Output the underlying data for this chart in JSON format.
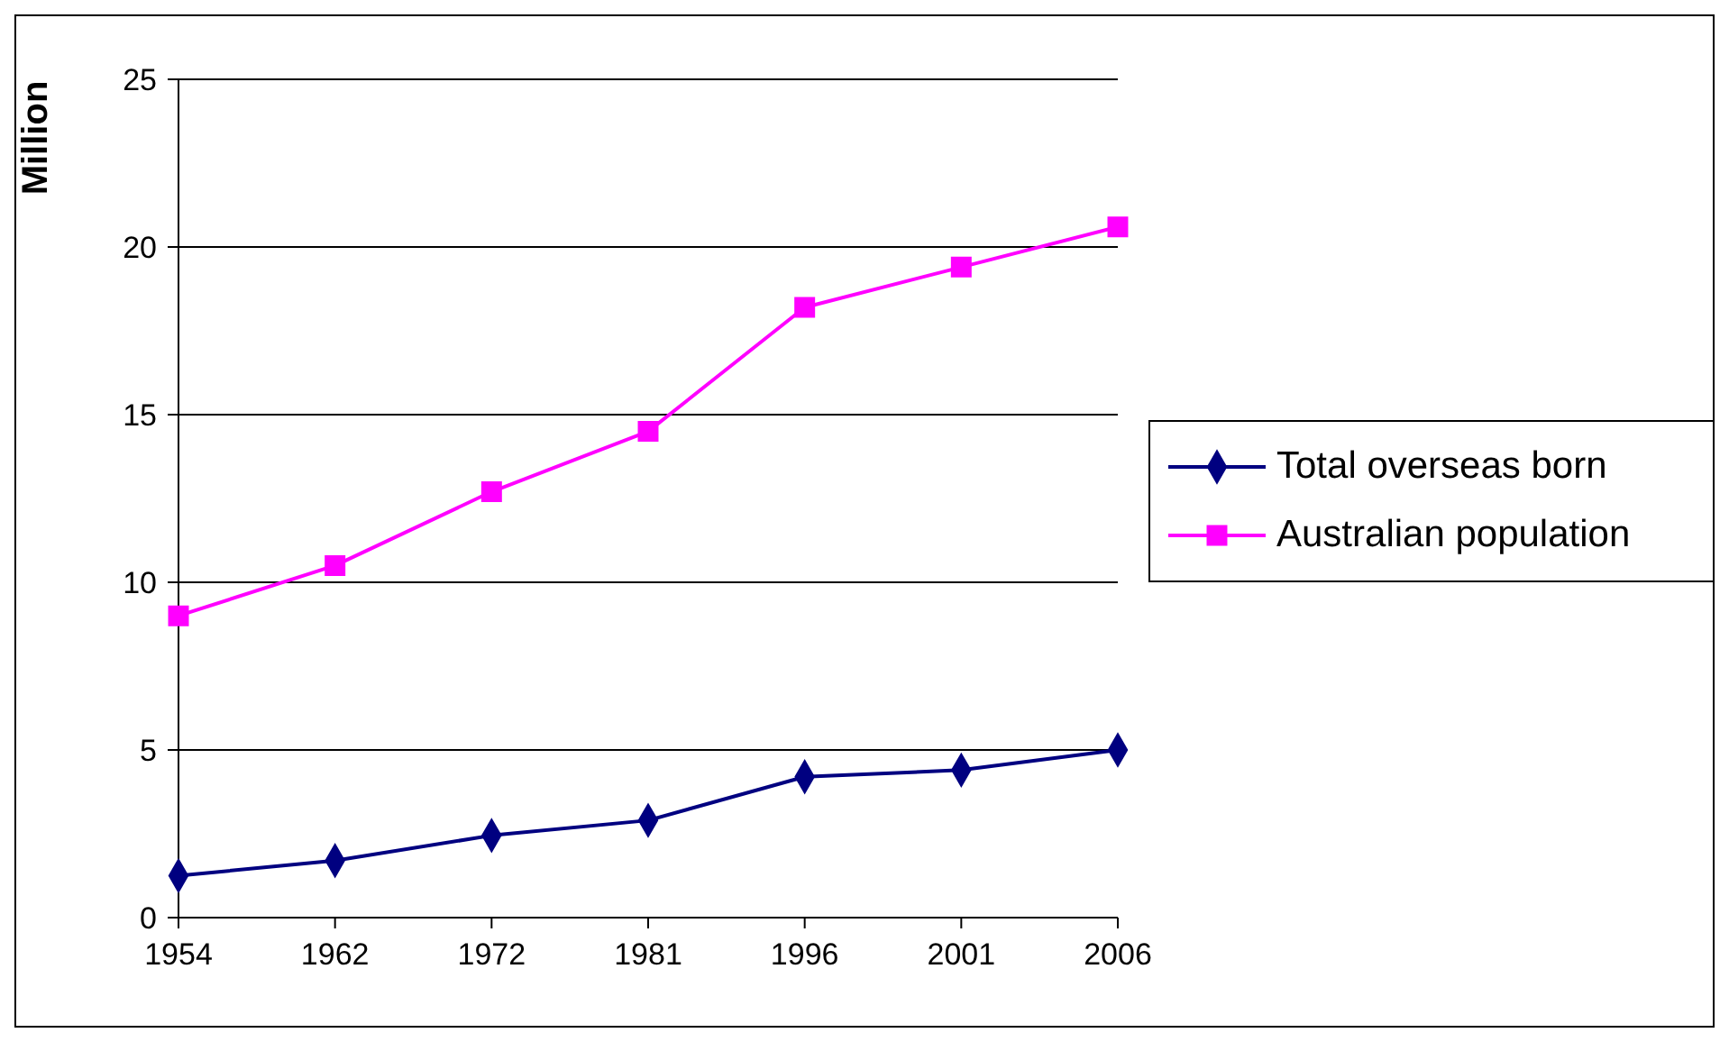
{
  "chart_data": {
    "type": "line",
    "ylabel": "Million",
    "categories": [
      "1954",
      "1962",
      "1972",
      "1981",
      "1996",
      "2001",
      "2006"
    ],
    "series": [
      {
        "name": "Total overseas born",
        "color": "#000080",
        "marker": "diamond",
        "values": [
          1.25,
          1.7,
          2.45,
          2.9,
          4.2,
          4.4,
          5.0
        ]
      },
      {
        "name": "Australian population",
        "color": "#ff00ff",
        "marker": "square",
        "values": [
          9.0,
          10.5,
          12.7,
          14.5,
          18.2,
          19.4,
          20.6
        ]
      }
    ],
    "ylim": [
      0,
      25
    ],
    "yticks": [
      0,
      5,
      10,
      15,
      20,
      25
    ],
    "grid": "y",
    "legend": "right"
  }
}
